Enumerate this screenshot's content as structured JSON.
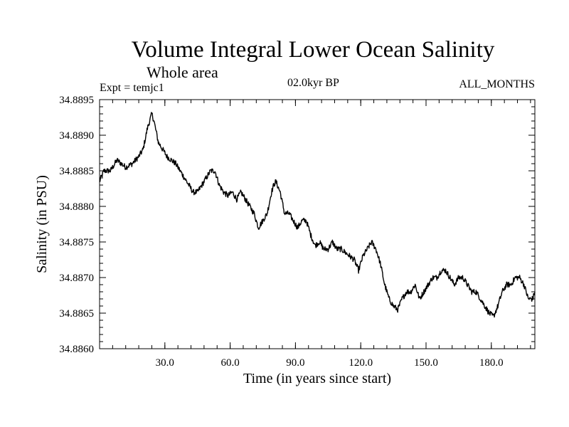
{
  "chart_data": {
    "type": "line",
    "title": "Volume Integral Lower Ocean Salinity",
    "subtitle": "Whole area",
    "experiment_label": "Expt = temjc1",
    "period_label": "02.0kyr BP",
    "months_label": "ALL_MONTHS",
    "xlabel": "Time (in years since start)",
    "ylabel": "Salinity (in PSU)",
    "xlim": [
      0,
      200
    ],
    "ylim": [
      34.886,
      34.8895
    ],
    "x_ticks": [
      30,
      60,
      90,
      120,
      150,
      180
    ],
    "x_tick_labels": [
      "30.0",
      "60.0",
      "90.0",
      "120.0",
      "150.0",
      "180.0"
    ],
    "y_ticks": [
      34.886,
      34.8865,
      34.887,
      34.8875,
      34.888,
      34.8885,
      34.889,
      34.8895
    ],
    "y_tick_labels": [
      "34.8860",
      "34.8865",
      "34.8870",
      "34.8875",
      "34.8880",
      "34.8885",
      "34.8890",
      "34.8895"
    ],
    "grid": false,
    "series": [
      {
        "name": "Salinity",
        "color": "#000000",
        "x": [
          0,
          2,
          5,
          8,
          10,
          12,
          15,
          18,
          20,
          22,
          23,
          24,
          25,
          27,
          29,
          31,
          33,
          35,
          37,
          39,
          41,
          43,
          45,
          47,
          49,
          51,
          53,
          55,
          57,
          59,
          61,
          63,
          65,
          67,
          69,
          71,
          73,
          75,
          77,
          79,
          80,
          81,
          83,
          85,
          87,
          89,
          91,
          93,
          95,
          97,
          99,
          101,
          103,
          105,
          107,
          109,
          111,
          113,
          115,
          117,
          119,
          121,
          123,
          125,
          127,
          129,
          131,
          133,
          135,
          137,
          139,
          141,
          143,
          145,
          147,
          149,
          151,
          153,
          155,
          157,
          159,
          161,
          163,
          165,
          167,
          169,
          171,
          173,
          175,
          177,
          179,
          181,
          183,
          185,
          187,
          189,
          191,
          193,
          195,
          197,
          199,
          200
        ],
        "y": [
          34.88835,
          34.8885,
          34.8885,
          34.88865,
          34.8886,
          34.88855,
          34.8886,
          34.8887,
          34.8888,
          34.8891,
          34.8892,
          34.8893,
          34.8892,
          34.8889,
          34.8888,
          34.8887,
          34.88865,
          34.8886,
          34.8885,
          34.8884,
          34.8883,
          34.8882,
          34.8882,
          34.8883,
          34.8884,
          34.8885,
          34.8885,
          34.8883,
          34.8882,
          34.88815,
          34.8882,
          34.8881,
          34.8882,
          34.8881,
          34.888,
          34.8879,
          34.8877,
          34.8878,
          34.8879,
          34.8882,
          34.8883,
          34.88835,
          34.8882,
          34.8879,
          34.8879,
          34.8878,
          34.8877,
          34.8878,
          34.8878,
          34.8876,
          34.88745,
          34.8875,
          34.8874,
          34.8874,
          34.8875,
          34.8874,
          34.8874,
          34.88735,
          34.8873,
          34.88725,
          34.8871,
          34.8873,
          34.8874,
          34.8875,
          34.8874,
          34.8872,
          34.8869,
          34.8867,
          34.8866,
          34.88655,
          34.8867,
          34.8868,
          34.8868,
          34.8869,
          34.8867,
          34.8868,
          34.8869,
          34.887,
          34.887,
          34.8871,
          34.8871,
          34.887,
          34.8869,
          34.887,
          34.887,
          34.8869,
          34.8868,
          34.8868,
          34.8867,
          34.8866,
          34.8865,
          34.88645,
          34.8866,
          34.8868,
          34.8869,
          34.8869,
          34.887,
          34.887,
          34.8869,
          34.8867,
          34.8867,
          34.8868
        ]
      }
    ]
  }
}
